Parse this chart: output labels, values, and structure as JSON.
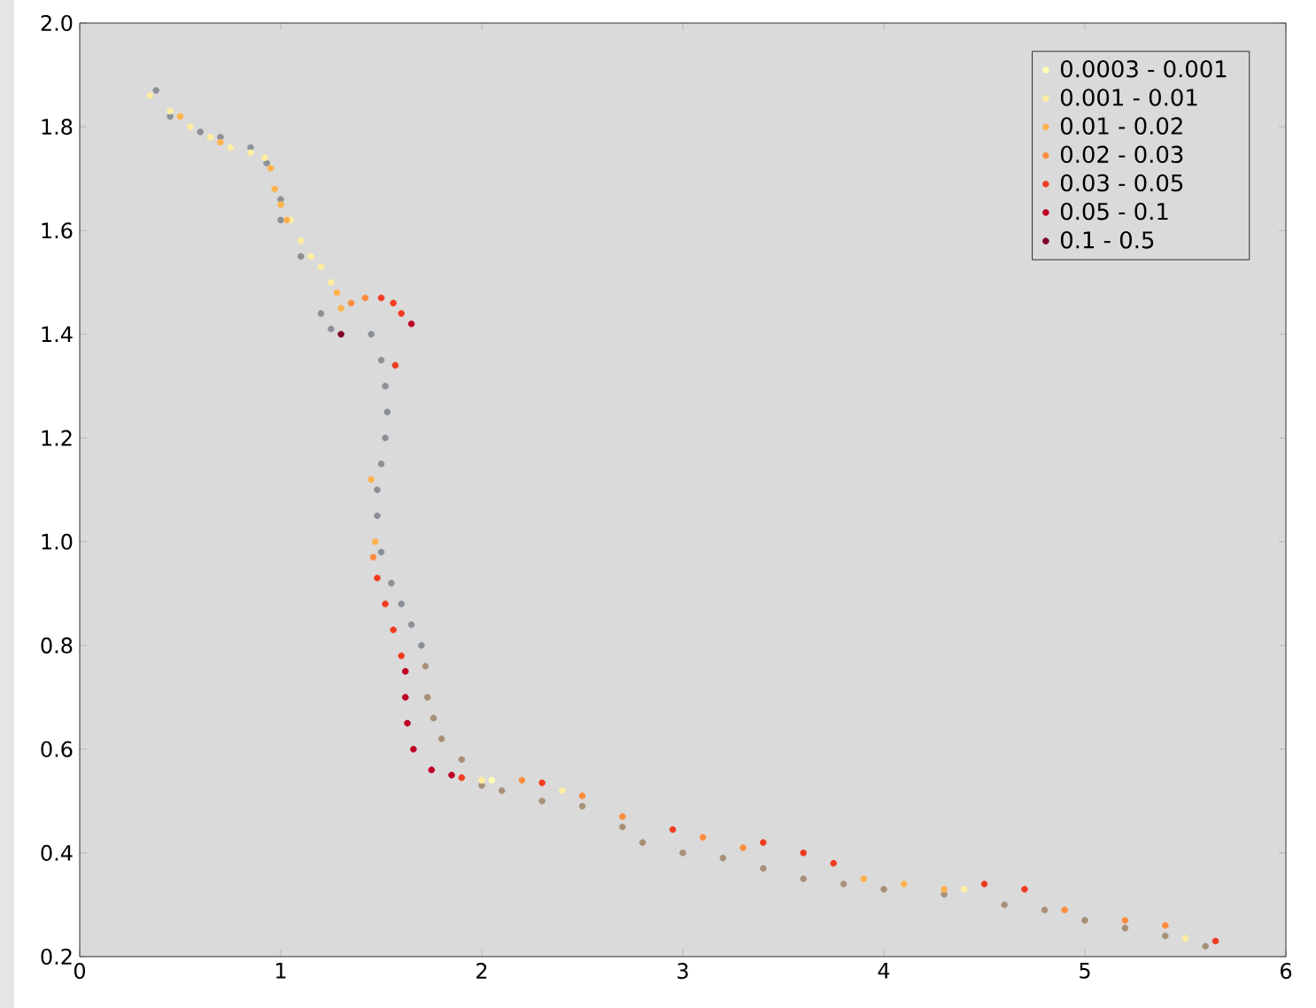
{
  "chart_data": {
    "type": "scatter",
    "xlim": [
      0,
      6
    ],
    "ylim": [
      0.2,
      2.0
    ],
    "xticks": [
      0,
      1,
      2,
      3,
      4,
      5,
      6
    ],
    "yticks": [
      0.2,
      0.4,
      0.6,
      0.8,
      {
        "value": 1,
        "label": "1.0"
      },
      1.2,
      1.4,
      1.6,
      1.8,
      {
        "value": 2,
        "label": "2.0"
      }
    ],
    "marker": "circle",
    "legend": "top right",
    "grid": false,
    "series": [
      {
        "color": "#8a9096",
        "x": [
          0.38,
          0.45,
          0.6,
          0.7,
          0.85,
          0.93,
          1.0,
          1.0,
          1.1,
          1.2,
          1.25,
          1.45,
          1.5,
          1.52,
          1.53,
          1.52,
          1.5,
          1.48,
          1.48,
          1.5,
          1.55,
          1.6,
          1.65,
          1.7
        ],
        "values": [
          1.87,
          1.82,
          1.79,
          1.78,
          1.76,
          1.73,
          1.66,
          1.62,
          1.55,
          1.44,
          1.41,
          1.4,
          1.35,
          1.3,
          1.25,
          1.2,
          1.15,
          1.1,
          1.05,
          0.98,
          0.92,
          0.88,
          0.84,
          0.8
        ]
      },
      {
        "color": "#a89078",
        "x": [
          1.72,
          1.73,
          1.76,
          1.8,
          1.9,
          2.0,
          2.1,
          2.3,
          2.5,
          2.7,
          2.8,
          3.0,
          3.2,
          3.4,
          3.6,
          3.8,
          4.0,
          4.3,
          4.6,
          4.8,
          5.0,
          5.2,
          5.4,
          5.6
        ],
        "values": [
          0.76,
          0.7,
          0.66,
          0.62,
          0.58,
          0.53,
          0.52,
          0.5,
          0.49,
          0.45,
          0.42,
          0.4,
          0.39,
          0.37,
          0.35,
          0.34,
          0.33,
          0.32,
          0.3,
          0.29,
          0.27,
          0.255,
          0.24,
          0.22
        ]
      },
      {
        "name": "0.0003 - 0.001",
        "color": "#ffffb2",
        "x": [
          2.05
        ],
        "values": [
          0.54
        ]
      },
      {
        "name": "0.001 - 0.01",
        "color": "#ffeda0",
        "x": [
          0.35,
          0.45,
          0.55,
          0.65,
          0.75,
          0.85,
          0.92,
          1.05,
          1.1,
          1.15,
          1.2,
          1.25,
          2.0,
          2.4,
          4.4,
          5.5
        ],
        "values": [
          1.86,
          1.83,
          1.8,
          1.78,
          1.76,
          1.75,
          1.74,
          1.62,
          1.58,
          1.55,
          1.53,
          1.5,
          0.54,
          0.52,
          0.33,
          0.235
        ]
      },
      {
        "name": "0.01 - 0.02",
        "color": "#feb24c",
        "x": [
          0.5,
          0.7,
          0.95,
          0.97,
          1.0,
          1.03,
          1.28,
          1.3,
          1.47,
          1.45,
          3.9,
          4.1,
          4.3
        ],
        "values": [
          1.82,
          1.77,
          1.72,
          1.68,
          1.65,
          1.62,
          1.48,
          1.45,
          1.0,
          1.12,
          0.35,
          0.34,
          0.33
        ]
      },
      {
        "name": "0.02 - 0.03",
        "color": "#fd8d3c",
        "x": [
          1.35,
          1.42,
          1.46,
          2.2,
          2.5,
          2.7,
          3.1,
          3.3,
          4.9,
          5.2,
          5.4
        ],
        "values": [
          1.46,
          1.47,
          0.97,
          0.54,
          0.51,
          0.47,
          0.43,
          0.41,
          0.29,
          0.27,
          0.26
        ]
      },
      {
        "name": "0.03 - 0.05",
        "color": "#f03b20",
        "x": [
          1.5,
          1.56,
          1.6,
          1.57,
          1.48,
          1.52,
          1.56,
          1.6,
          1.9,
          2.3,
          2.95,
          3.4,
          3.6,
          3.75,
          4.5,
          4.7,
          5.65
        ],
        "values": [
          1.47,
          1.46,
          1.44,
          1.34,
          0.93,
          0.88,
          0.83,
          0.78,
          0.545,
          0.535,
          0.445,
          0.42,
          0.4,
          0.38,
          0.34,
          0.33,
          0.23
        ]
      },
      {
        "name": "0.05 - 0.1",
        "color": "#bd0026",
        "x": [
          1.65,
          1.62,
          1.62,
          1.63,
          1.66,
          1.75,
          1.85
        ],
        "values": [
          1.42,
          0.75,
          0.7,
          0.65,
          0.6,
          0.56,
          0.55
        ]
      },
      {
        "name": "0.1 - 0.5",
        "color": "#800026",
        "x": [
          1.3
        ],
        "values": [
          1.4
        ]
      }
    ]
  }
}
